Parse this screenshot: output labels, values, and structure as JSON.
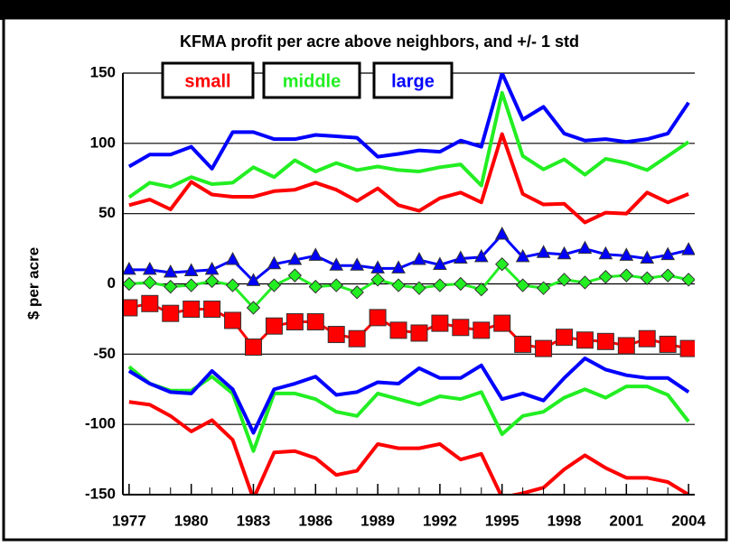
{
  "chart_data": {
    "type": "line",
    "title": "KFMA profit per acre above neighbors, and +/- 1 std",
    "y_label": "$ per acre",
    "x": [
      1977,
      1978,
      1979,
      1980,
      1981,
      1982,
      1983,
      1984,
      1985,
      1986,
      1987,
      1988,
      1989,
      1990,
      1991,
      1992,
      1993,
      1994,
      1995,
      1996,
      1997,
      1998,
      1999,
      2000,
      2001,
      2002,
      2003,
      2004
    ],
    "xlim": [
      1976.7,
      2004.3
    ],
    "xticks": [
      1977,
      1980,
      1983,
      1986,
      1989,
      1992,
      1995,
      1998,
      2001,
      2004
    ],
    "ylim": [
      -150,
      150
    ],
    "yticks": [
      -150,
      -100,
      -50,
      0,
      50,
      100,
      150
    ],
    "grid": true,
    "legend": "top-left",
    "series": [
      {
        "name": "small",
        "color": "#ff0000",
        "marker": "square",
        "values": [
          -17,
          -14,
          -21,
          -18,
          -18,
          -26,
          -45,
          -30,
          -27,
          -27,
          -36,
          -39,
          -24,
          -33,
          -35,
          -28,
          -31,
          -33,
          -28,
          -43,
          -46,
          -38,
          -40,
          -41,
          -44,
          -39,
          -43,
          -46
        ],
        "upper": [
          56,
          60,
          53,
          72.6,
          63.6,
          62,
          62,
          66,
          67,
          72,
          67,
          59,
          68,
          56,
          52,
          61,
          65,
          58,
          106.6,
          64,
          56.5,
          57,
          43.7,
          50.7,
          50,
          65,
          58,
          64
        ],
        "lower": [
          -84,
          -86,
          -94,
          -105,
          -97,
          -111,
          -153,
          -120,
          -119,
          -124,
          -136,
          -133,
          -114,
          -117,
          -117,
          -114,
          -125,
          -121,
          -152,
          -149,
          -145,
          -132,
          -122,
          -131,
          -138,
          -138,
          -141,
          -150
        ]
      },
      {
        "name": "middle",
        "color": "#22ee22",
        "marker": "diamond",
        "values": [
          0,
          1,
          -2,
          -1,
          2,
          -1,
          -17,
          -1,
          6,
          -2,
          -1,
          -6,
          3,
          -1,
          -3,
          -1,
          0,
          -4,
          14,
          -1,
          -3,
          3,
          1,
          5,
          6,
          4,
          6,
          3
        ],
        "upper": [
          61.7,
          72,
          69,
          76,
          71,
          72,
          83,
          76,
          88,
          80,
          86,
          81,
          83.5,
          81,
          80,
          83,
          85,
          70,
          136,
          91,
          81.5,
          88.6,
          77.7,
          89,
          86,
          81,
          91,
          101
        ],
        "lower": [
          -59,
          -71,
          -76,
          -76,
          -66,
          -78,
          -119,
          -78,
          -78,
          -82,
          -91,
          -94,
          -78,
          -82,
          -86,
          -80,
          -82,
          -77,
          -107,
          -94,
          -91,
          -81,
          -75,
          -81,
          -73,
          -73,
          -79,
          -98
        ]
      },
      {
        "name": "large",
        "color": "#0000ff",
        "marker": "triangle",
        "values": [
          10,
          10,
          8,
          9,
          10,
          17,
          2,
          14,
          17,
          20,
          13,
          13,
          11,
          11,
          17,
          13.5,
          18,
          19,
          35,
          19,
          22,
          21,
          25,
          21,
          20,
          18,
          20.5,
          24
        ],
        "upper": [
          83.5,
          92,
          92,
          97.6,
          82,
          108,
          108,
          103,
          103,
          106,
          105,
          104,
          90.5,
          92.5,
          95,
          94,
          102,
          97.6,
          150,
          117,
          126,
          107,
          102,
          103,
          101,
          103,
          107,
          129
        ],
        "lower": [
          -62,
          -71,
          -77,
          -78,
          -62,
          -75,
          -106,
          -75,
          -71,
          -66,
          -79,
          -77,
          -70,
          -71,
          -60,
          -67,
          -67,
          -58,
          -82,
          -78,
          -83,
          -67,
          -53,
          -61,
          -65,
          -67,
          -67,
          -77
        ]
      }
    ]
  }
}
